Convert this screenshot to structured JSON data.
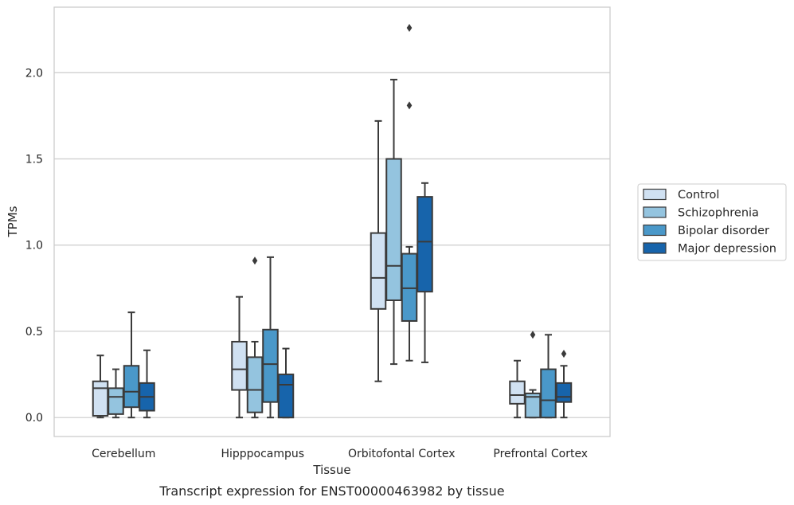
{
  "caption": "Transcript expression for ENST00000463982 by tissue",
  "chart_data": {
    "type": "box",
    "xlabel": "Tissue",
    "ylabel": "TPMs",
    "ylim": [
      -0.11,
      2.38
    ],
    "yticks": [
      "0.0",
      "0.5",
      "1.0",
      "1.5",
      "2.0"
    ],
    "grid": true,
    "legend_position": "right",
    "categories": [
      "Cerebellum",
      "Hipppocampus",
      "Orbitofontal Cortex",
      "Prefrontal Cortex"
    ],
    "series": [
      {
        "name": "Control",
        "color": "#d0e1f2",
        "boxes": [
          {
            "low": 0.0,
            "q1": 0.01,
            "median": 0.17,
            "q3": 0.21,
            "high": 0.36,
            "outliers": []
          },
          {
            "low": 0.0,
            "q1": 0.16,
            "median": 0.28,
            "q3": 0.44,
            "high": 0.7,
            "outliers": []
          },
          {
            "low": 0.21,
            "q1": 0.63,
            "median": 0.81,
            "q3": 1.07,
            "high": 1.72,
            "outliers": []
          },
          {
            "low": 0.0,
            "q1": 0.08,
            "median": 0.13,
            "q3": 0.21,
            "high": 0.33,
            "outliers": []
          }
        ]
      },
      {
        "name": "Schizophrenia",
        "color": "#94c4df",
        "boxes": [
          {
            "low": 0.0,
            "q1": 0.02,
            "median": 0.12,
            "q3": 0.17,
            "high": 0.28,
            "outliers": []
          },
          {
            "low": 0.0,
            "q1": 0.03,
            "median": 0.16,
            "q3": 0.35,
            "high": 0.44,
            "outliers": [
              0.91
            ]
          },
          {
            "low": 0.31,
            "q1": 0.68,
            "median": 0.88,
            "q3": 1.5,
            "high": 1.96,
            "outliers": []
          },
          {
            "low": 0.0,
            "q1": 0.0,
            "median": 0.12,
            "q3": 0.14,
            "high": 0.16,
            "outliers": [
              0.48
            ]
          }
        ]
      },
      {
        "name": "Bipolar disorder",
        "color": "#4a98c9",
        "boxes": [
          {
            "low": 0.0,
            "q1": 0.06,
            "median": 0.15,
            "q3": 0.3,
            "high": 0.61,
            "outliers": []
          },
          {
            "low": 0.0,
            "q1": 0.09,
            "median": 0.31,
            "q3": 0.51,
            "high": 0.93,
            "outliers": []
          },
          {
            "low": 0.33,
            "q1": 0.56,
            "median": 0.75,
            "q3": 0.95,
            "high": 0.99,
            "outliers": [
              1.81,
              2.26
            ]
          },
          {
            "low": 0.0,
            "q1": 0.0,
            "median": 0.1,
            "q3": 0.28,
            "high": 0.48,
            "outliers": []
          }
        ]
      },
      {
        "name": "Major depression",
        "color": "#1764ab",
        "boxes": [
          {
            "low": 0.0,
            "q1": 0.04,
            "median": 0.12,
            "q3": 0.2,
            "high": 0.39,
            "outliers": []
          },
          {
            "low": 0.0,
            "q1": 0.0,
            "median": 0.19,
            "q3": 0.25,
            "high": 0.4,
            "outliers": []
          },
          {
            "low": 0.32,
            "q1": 0.73,
            "median": 1.02,
            "q3": 1.28,
            "high": 1.36,
            "outliers": []
          },
          {
            "low": 0.0,
            "q1": 0.09,
            "median": 0.12,
            "q3": 0.2,
            "high": 0.3,
            "outliers": [
              0.37
            ]
          }
        ]
      }
    ]
  }
}
